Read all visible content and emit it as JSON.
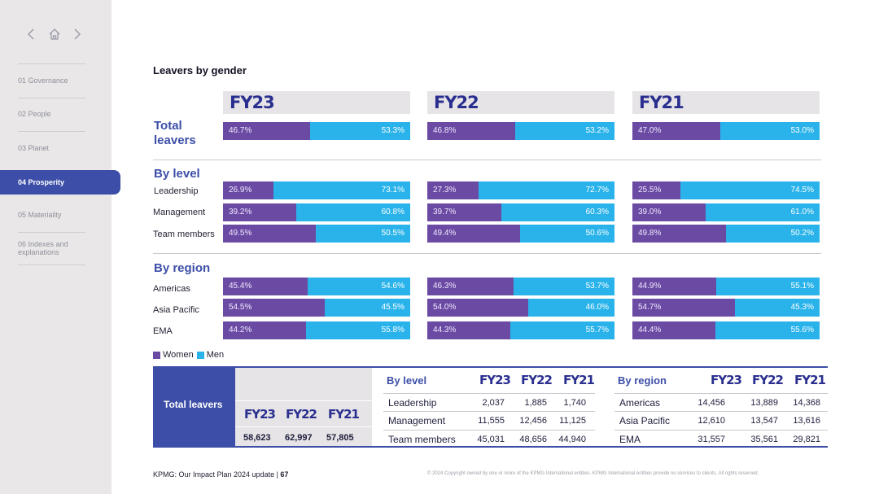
{
  "sidebar": {
    "items": [
      {
        "label": "01  Governance"
      },
      {
        "label": "02  People"
      },
      {
        "label": "03  Planet"
      },
      {
        "label": "04  Prosperity"
      },
      {
        "label": "05  Materiality"
      },
      {
        "label": "06  Indexes and explanations"
      }
    ],
    "active_index": 3
  },
  "page_title": "Leavers by gender",
  "years": [
    "FY23",
    "FY22",
    "FY21"
  ],
  "sections": {
    "total": "Total leavers",
    "level": "By level",
    "region": "By region"
  },
  "chart_data": {
    "type": "bar",
    "stacked": true,
    "unit": "%",
    "series": [
      "Women",
      "Men"
    ],
    "groups": [
      {
        "section": "Total leavers",
        "rows": [
          {
            "label": "",
            "values": {
              "FY23": [
                46.7,
                53.3
              ],
              "FY22": [
                46.8,
                53.2
              ],
              "FY21": [
                47.0,
                53.0
              ]
            },
            "text": {
              "FY23": [
                "46.7%",
                "53.3%"
              ],
              "FY22": [
                "46.8%",
                "53.2%"
              ],
              "FY21": [
                "47.0%",
                "53.0%"
              ]
            }
          }
        ]
      },
      {
        "section": "By level",
        "rows": [
          {
            "label": "Leadership",
            "values": {
              "FY23": [
                26.9,
                73.1
              ],
              "FY22": [
                27.3,
                72.7
              ],
              "FY21": [
                25.5,
                74.5
              ]
            },
            "text": {
              "FY23": [
                "26.9%",
                "73.1%"
              ],
              "FY22": [
                "27.3%",
                "72.7%"
              ],
              "FY21": [
                "25.5%",
                "74.5%"
              ]
            }
          },
          {
            "label": "Management",
            "values": {
              "FY23": [
                39.2,
                60.8
              ],
              "FY22": [
                39.7,
                60.3
              ],
              "FY21": [
                39.0,
                61.0
              ]
            },
            "text": {
              "FY23": [
                "39.2%",
                "60.8%"
              ],
              "FY22": [
                "39.7%",
                "60.3%"
              ],
              "FY21": [
                "39.0%",
                "61.0%"
              ]
            }
          },
          {
            "label": "Team members",
            "values": {
              "FY23": [
                49.5,
                50.5
              ],
              "FY22": [
                49.4,
                50.6
              ],
              "FY21": [
                49.8,
                50.2
              ]
            },
            "text": {
              "FY23": [
                "49.5%",
                "50.5%"
              ],
              "FY22": [
                "49.4%",
                "50.6%"
              ],
              "FY21": [
                "49.8%",
                "50.2%"
              ]
            }
          }
        ]
      },
      {
        "section": "By region",
        "rows": [
          {
            "label": "Americas",
            "values": {
              "FY23": [
                45.4,
                54.6
              ],
              "FY22": [
                46.3,
                53.7
              ],
              "FY21": [
                44.9,
                55.1
              ]
            },
            "text": {
              "FY23": [
                "45.4%",
                "54.6%"
              ],
              "FY22": [
                "46.3%",
                "53.7%"
              ],
              "FY21": [
                "44.9%",
                "55.1%"
              ]
            }
          },
          {
            "label": "Asia Pacific",
            "values": {
              "FY23": [
                54.5,
                45.5
              ],
              "FY22": [
                54.0,
                46.0
              ],
              "FY21": [
                54.7,
                45.3
              ]
            },
            "text": {
              "FY23": [
                "54.5%",
                "45.5%"
              ],
              "FY22": [
                "54.0%",
                "46.0%"
              ],
              "FY21": [
                "54.7%",
                "45.3%"
              ]
            }
          },
          {
            "label": "EMA",
            "values": {
              "FY23": [
                44.2,
                55.8
              ],
              "FY22": [
                44.3,
                55.7
              ],
              "FY21": [
                44.4,
                55.6
              ]
            },
            "text": {
              "FY23": [
                "44.2%",
                "55.8%"
              ],
              "FY22": [
                "44.3%",
                "55.7%"
              ],
              "FY21": [
                "44.4%",
                "55.6%"
              ]
            }
          }
        ]
      }
    ],
    "colors": {
      "Women": "#6b4aa3",
      "Men": "#29b3ea"
    },
    "legend": {
      "position": "bottom-left",
      "entries": [
        "Women",
        "Men"
      ]
    }
  },
  "tables": {
    "total": {
      "label": "Total leavers",
      "years": [
        "FY23",
        "FY22",
        "FY21"
      ],
      "values": [
        "58,623",
        "62,997",
        "57,805"
      ]
    },
    "by_level": {
      "label": "By level",
      "years": [
        "FY23",
        "FY22",
        "FY21"
      ],
      "rows": [
        {
          "name": "Leadership",
          "values": [
            "2,037",
            "1,885",
            "1,740"
          ]
        },
        {
          "name": "Management",
          "values": [
            "11,555",
            "12,456",
            "11,125"
          ]
        },
        {
          "name": "Team members",
          "values": [
            "45,031",
            "48,656",
            "44,940"
          ]
        }
      ]
    },
    "by_region": {
      "label": "By region",
      "years": [
        "FY23",
        "FY22",
        "FY21"
      ],
      "rows": [
        {
          "name": "Americas",
          "values": [
            "14,456",
            "13,889",
            "14,368"
          ]
        },
        {
          "name": "Asia Pacific",
          "values": [
            "12,610",
            "13,547",
            "13,616"
          ]
        },
        {
          "name": "EMA",
          "values": [
            "31,557",
            "35,561",
            "29,821"
          ]
        }
      ]
    }
  },
  "footer": {
    "left": "KPMG: Our Impact Plan 2024 update  |  ",
    "page": "67",
    "right": "© 2024 Copyright owned by one or more of the KPMG International entities. KPMG International entities provide no services to clients. All rights reserved."
  },
  "icons": {
    "back": "chevron-left-icon",
    "home": "home-icon",
    "forward": "chevron-right-icon"
  }
}
